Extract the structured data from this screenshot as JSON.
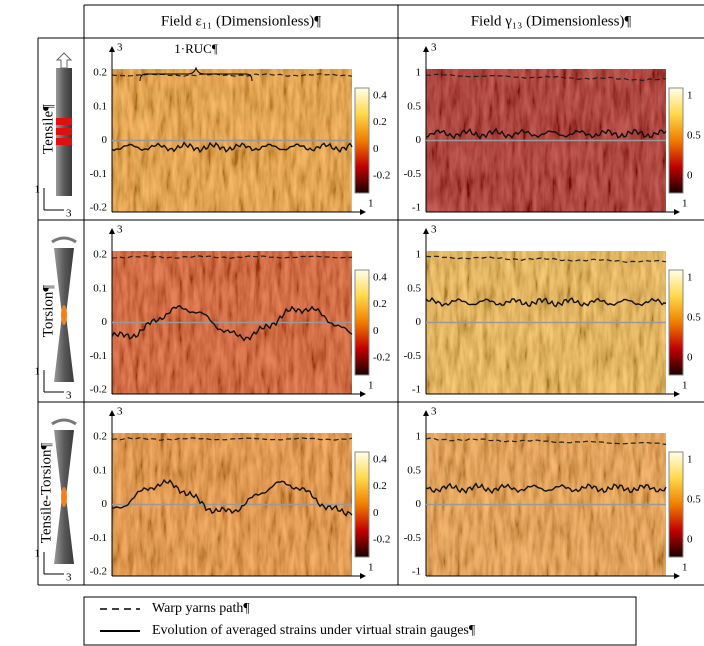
{
  "header": {
    "columns": [
      "Field ε₁₁ (Dimensionless)¶",
      "Field γ₁₃ (Dimensionless)¶"
    ]
  },
  "rows": [
    {
      "label": "Tensile¶",
      "specimen_axes": [
        "1",
        "3"
      ],
      "panels": [
        {
          "axis_top": "3",
          "axis_right": "1",
          "annotation": "1·RUC¶",
          "yticks": [
            0.2,
            0.1,
            0,
            -0.1,
            -0.2
          ],
          "colorbar_ticks": [
            0.4,
            0.2,
            0,
            -0.2
          ]
        },
        {
          "axis_top": "3",
          "axis_right": "1",
          "yticks": [
            1,
            0.5,
            0,
            -0.5,
            -1
          ],
          "colorbar_ticks": [
            1,
            0.5,
            0
          ]
        }
      ]
    },
    {
      "label": "Torsion¶",
      "specimen_axes": [
        "1",
        "3"
      ],
      "panels": [
        {
          "axis_top": "3",
          "axis_right": "1",
          "yticks": [
            0.2,
            0.1,
            0,
            -0.1,
            -0.2
          ],
          "colorbar_ticks": [
            0.4,
            0.2,
            0,
            -0.2
          ]
        },
        {
          "axis_top": "3",
          "axis_right": "1",
          "yticks": [
            1,
            0.5,
            0,
            -0.5,
            -1
          ],
          "colorbar_ticks": [
            1,
            0.5,
            0
          ]
        }
      ]
    },
    {
      "label": "Tensile-Torsion¶",
      "specimen_axes": [
        "1",
        "3"
      ],
      "panels": [
        {
          "axis_top": "3",
          "axis_right": "1",
          "yticks": [
            0.2,
            0.1,
            0,
            -0.1,
            -0.2
          ],
          "colorbar_ticks": [
            0.4,
            0.2,
            0,
            -0.2
          ]
        },
        {
          "axis_top": "3",
          "axis_right": "1",
          "yticks": [
            1,
            0.5,
            0,
            -0.5,
            -1
          ],
          "colorbar_ticks": [
            1,
            0.5,
            0
          ]
        }
      ]
    }
  ],
  "legend": [
    "Warp yarns path¶",
    "Evolution of averaged strains under virtual strain gauges¶"
  ]
}
